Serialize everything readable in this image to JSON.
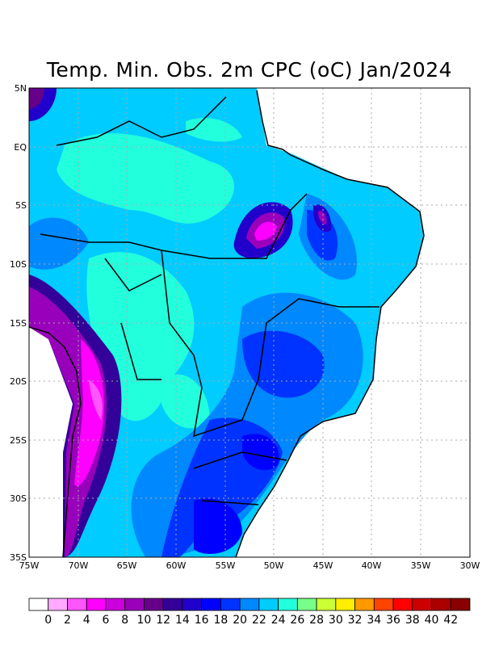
{
  "title": "Temp. Min. Obs. 2m CPC (oC) Jan/2024",
  "lat_labels": [
    "5N",
    "EQ",
    "5S",
    "10S",
    "15S",
    "20S",
    "25S",
    "30S",
    "35S"
  ],
  "lon_labels": [
    "75W",
    "70W",
    "65W",
    "60W",
    "55W",
    "50W",
    "45W",
    "40W",
    "35W",
    "30W"
  ],
  "colorbar": {
    "labels": [
      "0",
      "2",
      "4",
      "6",
      "8",
      "10",
      "12",
      "14",
      "16",
      "18",
      "20",
      "22",
      "24",
      "26",
      "28",
      "30",
      "32",
      "34",
      "36",
      "38",
      "40",
      "42"
    ],
    "colors": [
      "#ffffff",
      "#ffaaff",
      "#ff55ff",
      "#ff00ff",
      "#cc00dd",
      "#9900bb",
      "#660088",
      "#330099",
      "#2200cc",
      "#0000ff",
      "#0033ff",
      "#0088ff",
      "#00ccff",
      "#22ffdd",
      "#77ff88",
      "#ccff33",
      "#ffee00",
      "#ff9900",
      "#ff4400",
      "#ff0000",
      "#cc0000",
      "#aa0000",
      "#880000"
    ]
  }
}
